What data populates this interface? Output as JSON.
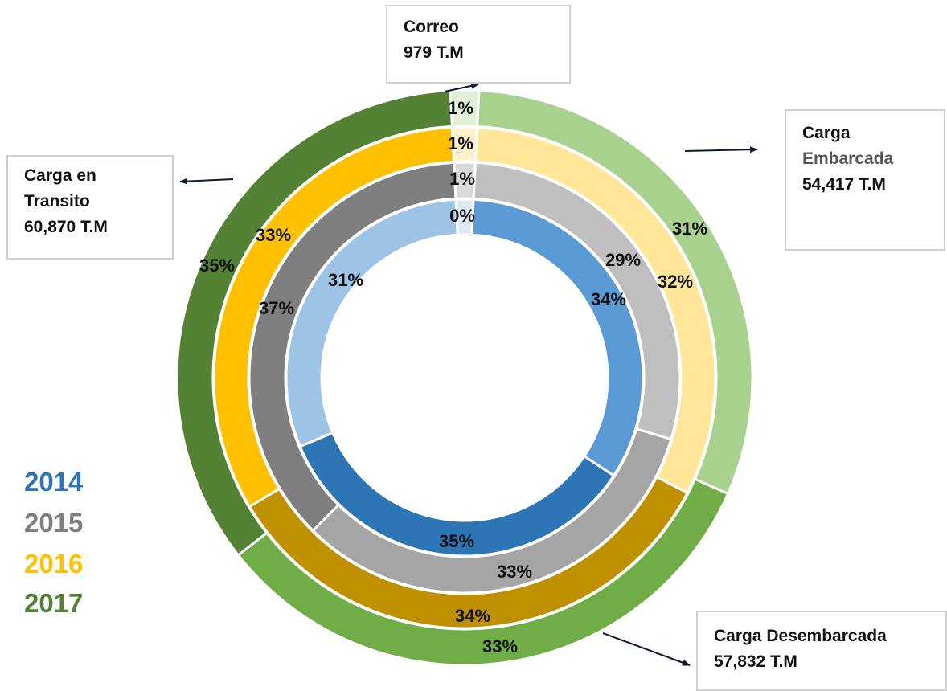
{
  "chart_data": {
    "type": "pie",
    "subtype": "multi-ring-doughnut",
    "categories": [
      "Correo",
      "Carga Embarcada",
      "Carga Desembarcada",
      "Carga en Transito"
    ],
    "series": [
      {
        "name": "2014",
        "values": [
          0,
          34,
          35,
          31
        ],
        "labels": [
          "0%",
          "34%",
          "35%",
          "31%"
        ]
      },
      {
        "name": "2015",
        "values": [
          1,
          29,
          33,
          37
        ],
        "labels": [
          "1%",
          "29%",
          "33%",
          "37%"
        ]
      },
      {
        "name": "2016",
        "values": [
          1,
          32,
          34,
          33
        ],
        "labels": [
          "1%",
          "32%",
          "34%",
          "33%"
        ]
      },
      {
        "name": "2017",
        "values": [
          1,
          31,
          33,
          35
        ],
        "labels": [
          "1%",
          "31%",
          "33%",
          "35%"
        ]
      }
    ],
    "colors": {
      "2014": [
        "#dde9f5",
        "#5b9bd5",
        "#2e75b6",
        "#9dc3e6"
      ],
      "2015": [
        "#d9d9d9",
        "#bfbfbf",
        "#a5a5a5",
        "#7f7f7f"
      ],
      "2016": [
        "#fff2cc",
        "#ffe699",
        "#bf9000",
        "#ffc000"
      ],
      "2017": [
        "#e2f0d9",
        "#a9d18e",
        "#70ad47",
        "#548235"
      ]
    },
    "legend": {
      "placement": "bottom-left",
      "entries": [
        {
          "label": "2014",
          "color": "#2e75b6"
        },
        {
          "label": "2015",
          "color": "#7f7f7f"
        },
        {
          "label": "2016",
          "color": "#ffc000"
        },
        {
          "label": "2017",
          "color": "#548235"
        }
      ]
    },
    "callouts": {
      "correo": {
        "line1": "Correo",
        "line2": "979 T.M"
      },
      "embarcada": {
        "line1": "Carga",
        "line2": "Embarcada",
        "line3": "54,417 T.M"
      },
      "transito": {
        "line1": "Carga en",
        "line2": "Transito",
        "line3": "60,870 T.M"
      },
      "desembarcada": {
        "line1": "Carga Desembarcada",
        "line2": "57,832 T.M"
      }
    }
  }
}
